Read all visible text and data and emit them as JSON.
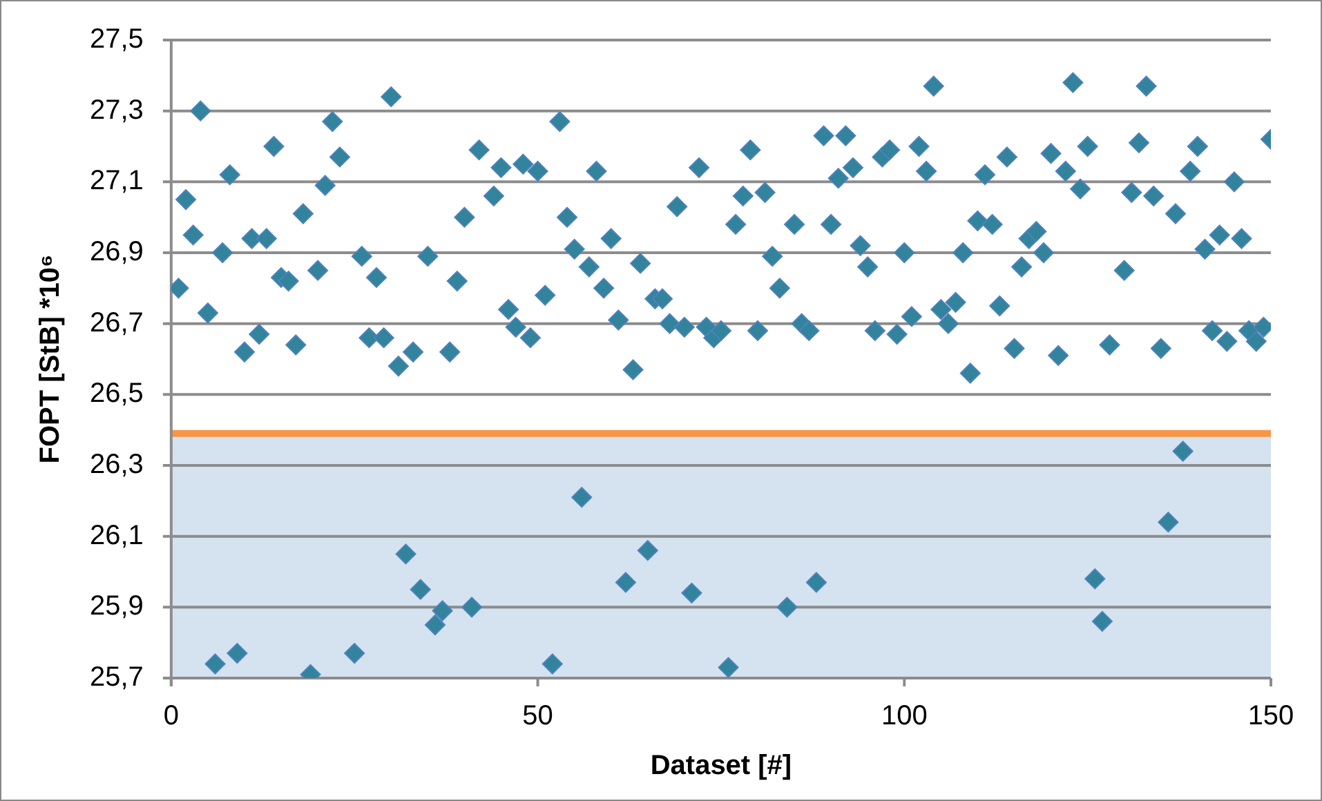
{
  "chart_data": {
    "type": "scatter",
    "xlabel": "Dataset [#]",
    "ylabel": "FOPT [StB] *10⁶",
    "xlim": [
      0,
      150
    ],
    "xticks": [
      0,
      50,
      100,
      150
    ],
    "ylim": [
      25.7,
      27.5
    ],
    "yticks": [
      {
        "value": 25.7,
        "label": "25,7"
      },
      {
        "value": 25.9,
        "label": "25,9"
      },
      {
        "value": 26.1,
        "label": "26,1"
      },
      {
        "value": 26.3,
        "label": "26,3"
      },
      {
        "value": 26.5,
        "label": "26,5"
      },
      {
        "value": 26.7,
        "label": "26,7"
      },
      {
        "value": 26.9,
        "label": "26,9"
      },
      {
        "value": 27.1,
        "label": "27,1"
      },
      {
        "value": 27.3,
        "label": "27,3"
      },
      {
        "value": 27.5,
        "label": "27,5"
      }
    ],
    "grid": "y",
    "legend": false,
    "marker": "diamond",
    "ref_lines": [
      {
        "axis": "y",
        "value": 26.39,
        "color": "#f79646"
      }
    ],
    "bands": [
      {
        "axis": "y",
        "from": 25.7,
        "to": 26.39,
        "color": "#d5e2f0"
      }
    ],
    "series": [
      {
        "color": "#31849b",
        "x": [
          1,
          2,
          3,
          4,
          5,
          6,
          7,
          8,
          9,
          10,
          11,
          12,
          13,
          14,
          15,
          16,
          17,
          18,
          19,
          20,
          21,
          22,
          23,
          25,
          26,
          27,
          28,
          29,
          30,
          31,
          32,
          33,
          34,
          35,
          36,
          37,
          38,
          39,
          40,
          41,
          42,
          44,
          45,
          46,
          47,
          48,
          49,
          50,
          51,
          52,
          53,
          54,
          55,
          56,
          57,
          58,
          59,
          60,
          61,
          62,
          63,
          64,
          65,
          66,
          67,
          68,
          69,
          70,
          71,
          72,
          73,
          74,
          75,
          76,
          77,
          78,
          79,
          80,
          81,
          82,
          83,
          84,
          85,
          86,
          87,
          88,
          89,
          90,
          91,
          92,
          93,
          94,
          95,
          96,
          97,
          98,
          99,
          100,
          101,
          102,
          103,
          104,
          105,
          106,
          107,
          108,
          109,
          110,
          111,
          112,
          113,
          114,
          115,
          116,
          117,
          118,
          119,
          120,
          121,
          122,
          123,
          124,
          125,
          126,
          127,
          128,
          130,
          131,
          132,
          133,
          134,
          135,
          136,
          137,
          138,
          139,
          140,
          141,
          142,
          143,
          144,
          145,
          146,
          147,
          148,
          149,
          150
        ],
        "values": [
          26.8,
          27.05,
          26.95,
          27.3,
          26.73,
          25.74,
          26.9,
          27.12,
          25.77,
          26.62,
          26.94,
          26.67,
          26.94,
          27.2,
          26.83,
          26.82,
          26.64,
          27.01,
          25.71,
          26.85,
          27.09,
          27.27,
          27.17,
          25.77,
          26.89,
          26.66,
          26.83,
          26.66,
          27.34,
          26.58,
          26.05,
          26.62,
          25.95,
          26.89,
          25.85,
          25.89,
          26.62,
          26.82,
          27.0,
          25.9,
          27.19,
          27.06,
          27.14,
          26.74,
          26.69,
          27.15,
          26.66,
          27.13,
          26.78,
          25.74,
          27.27,
          27.0,
          26.91,
          26.21,
          26.86,
          27.13,
          26.8,
          26.94,
          26.71,
          25.97,
          26.57,
          26.87,
          26.06,
          26.77,
          26.77,
          26.7,
          27.03,
          26.69,
          25.94,
          27.14,
          26.69,
          26.66,
          26.68,
          25.73,
          26.98,
          27.06,
          27.19,
          26.68,
          27.07,
          26.89,
          26.8,
          25.9,
          26.98,
          26.7,
          26.68,
          25.97,
          27.23,
          26.98,
          27.11,
          27.23,
          27.14,
          26.92,
          26.86,
          26.68,
          27.17,
          27.19,
          26.67,
          26.9,
          26.72,
          27.2,
          27.13,
          27.37,
          26.74,
          26.7,
          26.76,
          26.9,
          26.56,
          26.99,
          27.12,
          26.98,
          26.75,
          27.17,
          26.63,
          26.86,
          26.94,
          26.96,
          26.9,
          27.18,
          26.61,
          27.13,
          27.38,
          27.08,
          27.2,
          25.98,
          25.86,
          26.64,
          26.85,
          27.07,
          27.21,
          27.37,
          27.06,
          26.63,
          26.14,
          27.01,
          26.34,
          27.13,
          27.2,
          26.91,
          26.68,
          26.95,
          26.65,
          27.1,
          26.94,
          26.68,
          26.65,
          26.69,
          27.22
        ]
      }
    ]
  }
}
